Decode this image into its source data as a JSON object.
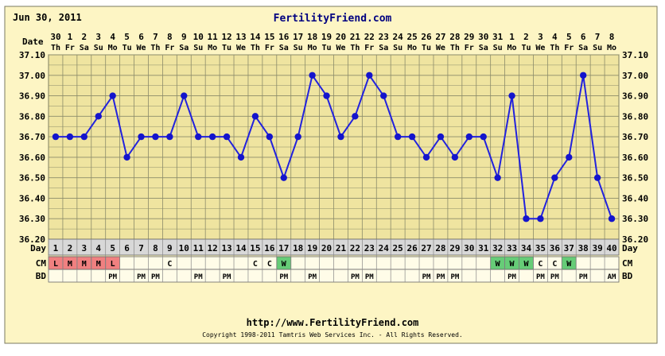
{
  "header": {
    "date": "Jun 30, 2011",
    "site": "FertilityFriend.com"
  },
  "footer": {
    "url": "http://www.FertilityFriend.com",
    "copyright": "Copyright 1998-2011 Tamtris Web Services Inc. - All Rights Reserved."
  },
  "row_labels": {
    "date": "Date",
    "day": "Day",
    "cm": "CM",
    "bd": "BD"
  },
  "colors": {
    "panel_bg": "#fdf5c4",
    "plot_bg": "#efe4a0",
    "grid": "#8b8b6a",
    "line": "#2222dd",
    "marker": "#1414cc",
    "header_text": "#000080",
    "day_row_bg": "#d8d8d8",
    "menses_bg": "#f08080",
    "watery_bg": "#66cc77"
  },
  "chart_data": {
    "type": "line",
    "ylim": [
      36.2,
      37.1
    ],
    "yticks": [
      "36.20",
      "36.30",
      "36.40",
      "36.50",
      "36.60",
      "36.70",
      "36.80",
      "36.90",
      "37.00",
      "37.10"
    ],
    "grid": true,
    "dates": [
      "30",
      "1",
      "2",
      "3",
      "4",
      "5",
      "6",
      "7",
      "8",
      "9",
      "10",
      "11",
      "12",
      "13",
      "14",
      "15",
      "16",
      "17",
      "18",
      "19",
      "20",
      "21",
      "22",
      "23",
      "24",
      "25",
      "26",
      "27",
      "28",
      "29",
      "30",
      "31",
      "1",
      "2",
      "3",
      "4",
      "5",
      "6",
      "7",
      "8"
    ],
    "weekdays": [
      "Th",
      "Fr",
      "Sa",
      "Su",
      "Mo",
      "Tu",
      "We",
      "Th",
      "Fr",
      "Sa",
      "Su",
      "Mo",
      "Tu",
      "We",
      "Th",
      "Fr",
      "Sa",
      "Su",
      "Mo",
      "Tu",
      "We",
      "Th",
      "Fr",
      "Sa",
      "Su",
      "Mo",
      "Tu",
      "We",
      "Th",
      "Fr",
      "Sa",
      "Su",
      "Mo",
      "Tu",
      "We",
      "Th",
      "Fr",
      "Sa",
      "Su",
      "Mo"
    ],
    "days": [
      "1",
      "2",
      "3",
      "4",
      "5",
      "6",
      "7",
      "8",
      "9",
      "10",
      "11",
      "12",
      "13",
      "14",
      "15",
      "16",
      "17",
      "18",
      "19",
      "20",
      "21",
      "22",
      "23",
      "24",
      "25",
      "26",
      "27",
      "28",
      "29",
      "30",
      "31",
      "32",
      "33",
      "34",
      "35",
      "36",
      "37",
      "38",
      "39",
      "40"
    ],
    "values": [
      36.7,
      36.7,
      36.7,
      36.8,
      36.9,
      36.6,
      36.7,
      36.7,
      36.7,
      36.9,
      36.7,
      36.7,
      36.7,
      36.6,
      36.8,
      36.7,
      36.5,
      36.7,
      37.0,
      36.9,
      36.7,
      36.8,
      37.0,
      36.9,
      36.7,
      36.7,
      36.6,
      36.7,
      36.6,
      36.7,
      36.7,
      36.5,
      36.9,
      36.3,
      36.3,
      36.5,
      36.6,
      37.0,
      36.5,
      36.3
    ],
    "cm": [
      "L",
      "M",
      "M",
      "M",
      "L",
      "",
      "",
      "",
      "C",
      "",
      "",
      "",
      "",
      "",
      "C",
      "C",
      "W",
      "",
      "",
      "",
      "",
      "",
      "",
      "",
      "",
      "",
      "",
      "",
      "",
      "",
      "",
      "W",
      "W",
      "W",
      "C",
      "C",
      "W",
      "",
      "",
      ""
    ],
    "bd": [
      "",
      "",
      "",
      "",
      "PM",
      "",
      "PM",
      "PM",
      "",
      "",
      "PM",
      "",
      "PM",
      "",
      "",
      "",
      "PM",
      "",
      "PM",
      "",
      "",
      "PM",
      "PM",
      "",
      "",
      "",
      "PM",
      "PM",
      "PM",
      "",
      "",
      "",
      "PM",
      "",
      "PM",
      "PM",
      "",
      "PM",
      "",
      "AM"
    ]
  }
}
